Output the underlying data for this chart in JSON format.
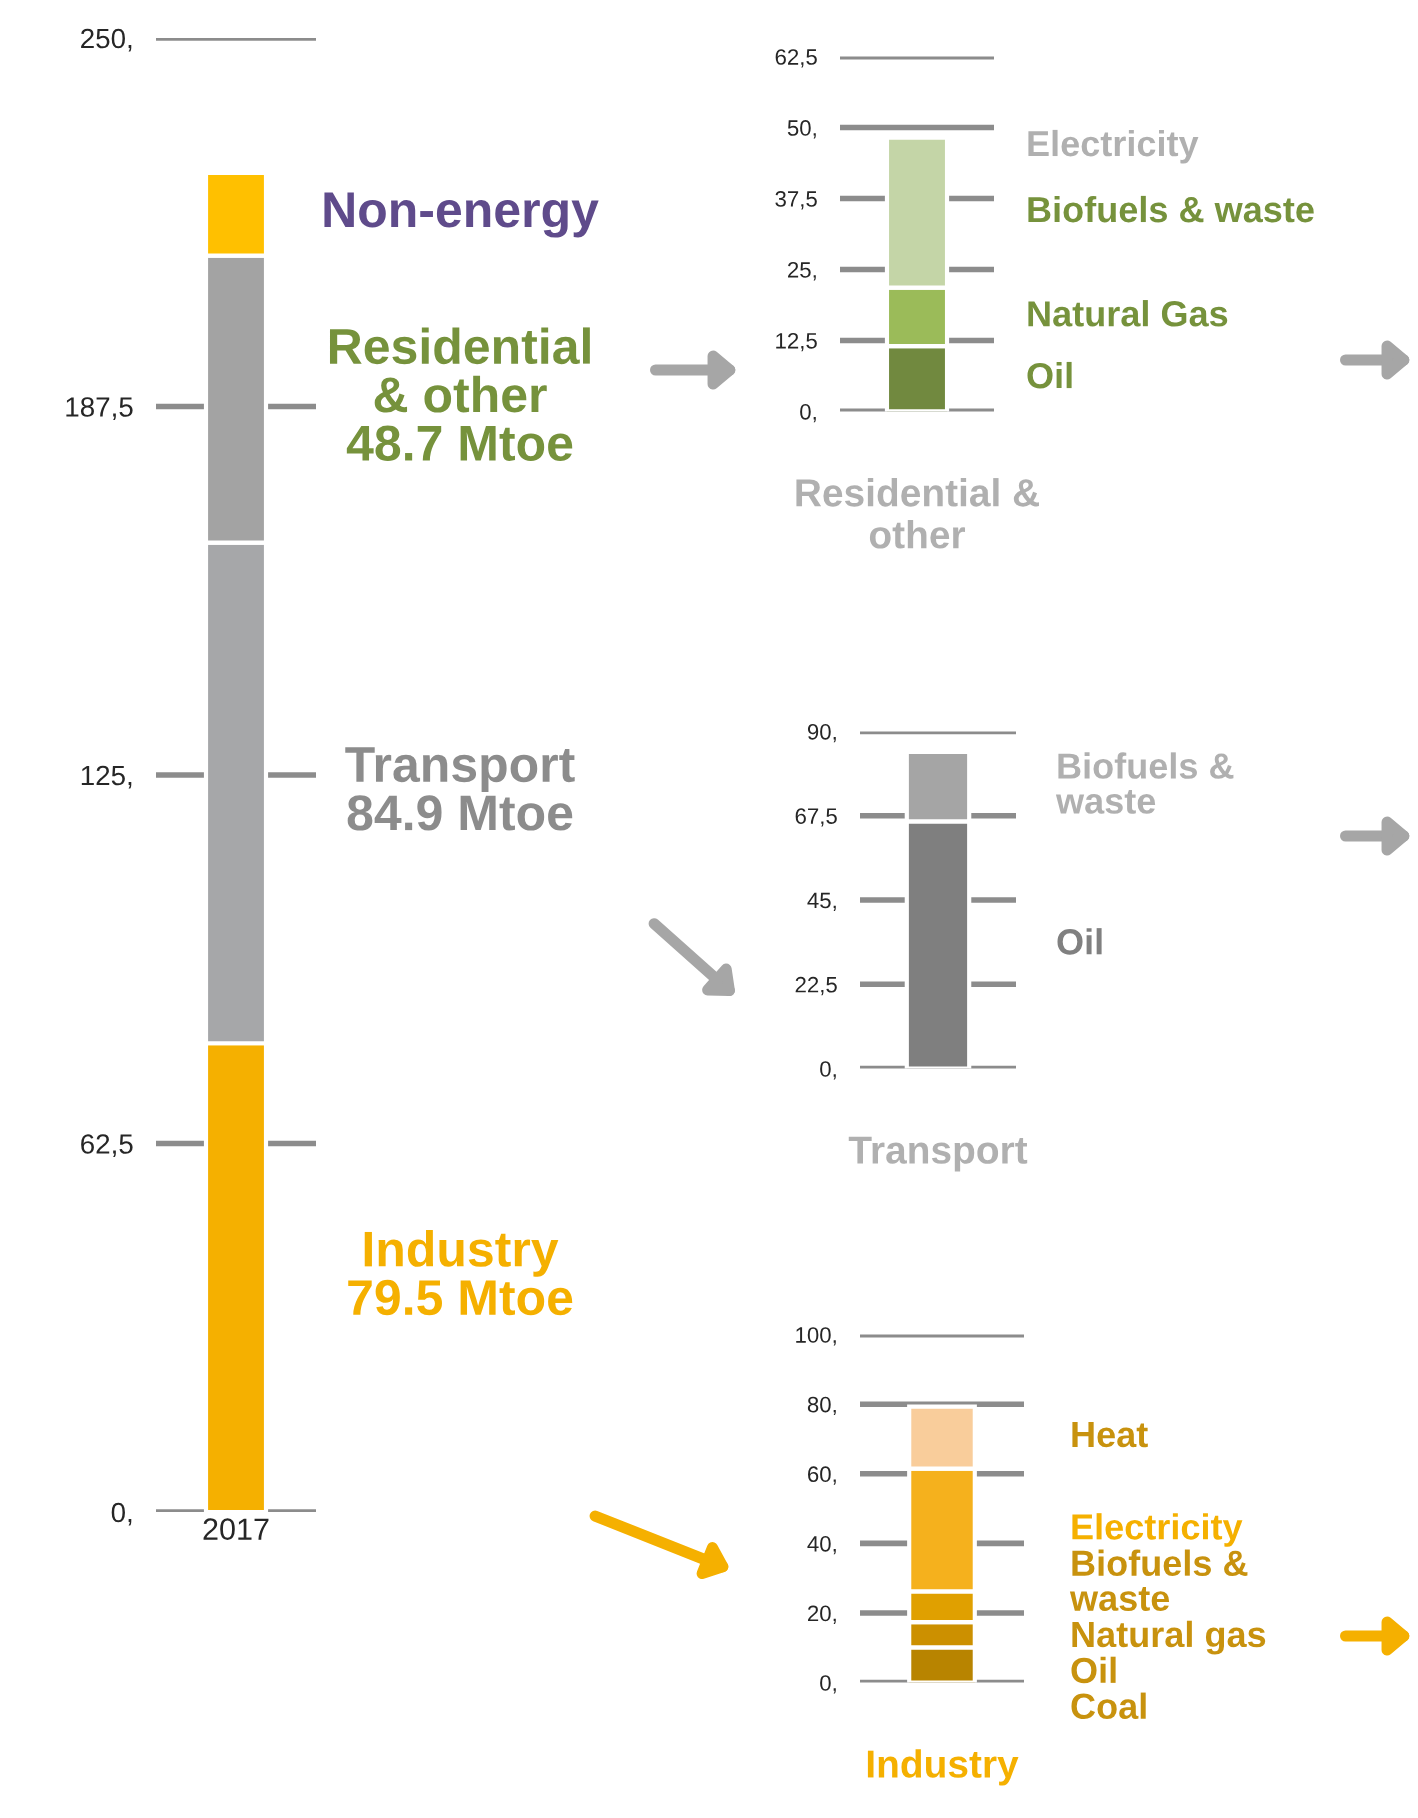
{
  "chart_data": [
    {
      "type": "bar",
      "stacked": true,
      "categories": [
        "2017"
      ],
      "grid": "y",
      "ylim": [
        0,
        250
      ],
      "yticks": [
        {
          "value": 0,
          "label": "0,"
        },
        {
          "value": 62.5,
          "label": "62,5"
        },
        {
          "value": 125,
          "label": "125,"
        },
        {
          "value": 187.5,
          "label": "187,5"
        },
        {
          "value": 250,
          "label": "250,"
        }
      ],
      "series": [
        {
          "name": "Industry\n79.5 Mtoe",
          "color": "#f5b000",
          "values": [
            79.5
          ]
        },
        {
          "name": "Transport\n84.9 Mtoe",
          "color": "#a6a7a9",
          "values": [
            84.9
          ]
        },
        {
          "name": "Residential\n& other\n48.7 Mtoe",
          "color": "#a3a3a3",
          "values": [
            48.7
          ]
        },
        {
          "name": "Non-energy",
          "color": "#ffc000",
          "values": [
            14
          ]
        }
      ]
    },
    {
      "type": "bar",
      "stacked": true,
      "categories": [
        null
      ],
      "grid": "y",
      "ylim": [
        0,
        62.5
      ],
      "xlabel": "Residential &\nother",
      "yticks": [
        {
          "value": 0,
          "label": "0,"
        },
        {
          "value": 12.5,
          "label": "12,5"
        },
        {
          "value": 25,
          "label": "25,"
        },
        {
          "value": 37.5,
          "label": "37,5"
        },
        {
          "value": 50,
          "label": "50,"
        },
        {
          "value": 62.5,
          "label": "62,5"
        }
      ],
      "annotations": [
        "Electricity"
      ],
      "series": [
        {
          "name": "Oil",
          "color": "#71893f",
          "values": [
            11.5
          ]
        },
        {
          "name": "Natural Gas",
          "color": "#9bbb59",
          "values": [
            10.3
          ]
        },
        {
          "name": "Biofuels & waste",
          "color": "#c4d5a7",
          "values": [
            26.4
          ]
        }
      ]
    },
    {
      "type": "bar",
      "stacked": true,
      "categories": [
        null
      ],
      "grid": "y",
      "ylim": [
        0,
        90
      ],
      "xlabel": "Transport",
      "yticks": [
        {
          "value": 0,
          "label": "0,"
        },
        {
          "value": 22.5,
          "label": "22,5"
        },
        {
          "value": 45,
          "label": "45,"
        },
        {
          "value": 67.5,
          "label": "67,5"
        },
        {
          "value": 90,
          "label": "90,"
        }
      ],
      "series": [
        {
          "name": "Oil",
          "color": "#7f7f7f",
          "values": [
            66
          ]
        },
        {
          "name": "Biofuels &\nwaste",
          "color": "#a5a5a5",
          "values": [
            18.5
          ]
        }
      ]
    },
    {
      "type": "bar",
      "stacked": true,
      "categories": [
        null
      ],
      "grid": "y",
      "ylim": [
        0,
        100
      ],
      "xlabel": "Industry",
      "yticks": [
        {
          "value": 0,
          "label": "0,"
        },
        {
          "value": 20,
          "label": "20,"
        },
        {
          "value": 40,
          "label": "40,"
        },
        {
          "value": 60,
          "label": "60,"
        },
        {
          "value": 80,
          "label": "80,"
        },
        {
          "value": 100,
          "label": "100,"
        }
      ],
      "annotations": [
        "Biofuels &\nwaste"
      ],
      "series": [
        {
          "name": "Coal",
          "color": "#b88400",
          "values": [
            10.1
          ]
        },
        {
          "name": "Oil",
          "color": "#cc9000",
          "values": [
            7.3
          ]
        },
        {
          "name": "Natural gas",
          "color": "#e0a000",
          "values": [
            8.8
          ]
        },
        {
          "name": "Electricity",
          "color": "#f5b11d",
          "values": [
            35.3
          ]
        },
        {
          "name": "Heat",
          "color": "#f9cd9b",
          "values": [
            17.8
          ]
        }
      ]
    }
  ]
}
